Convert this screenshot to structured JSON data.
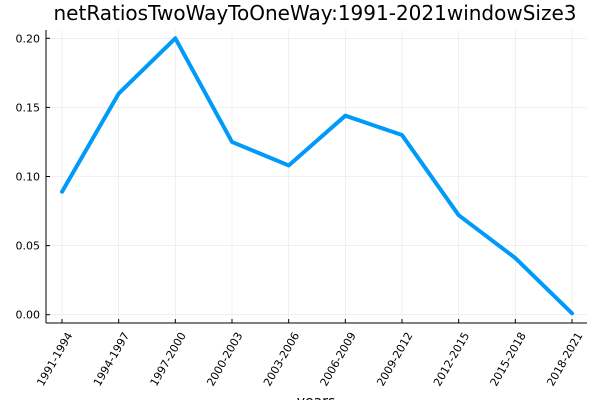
{
  "chart_data": {
    "type": "line",
    "title": "netRatiosTwoWayToOneWay:1991-2021windowSize3",
    "xlabel": "years",
    "ylabel": "",
    "categories": [
      "1991-1994",
      "1994-1997",
      "1997-2000",
      "2000-2003",
      "2003-2006",
      "2006-2009",
      "2009-2012",
      "2012-2015",
      "2015-2018",
      "2018-2021"
    ],
    "series": [
      {
        "values": [
          0.089,
          0.16,
          0.2,
          0.125,
          0.108,
          0.144,
          0.13,
          0.072,
          0.041,
          0.001
        ],
        "color": "#009af9"
      }
    ],
    "ylim": [
      -0.006,
      0.206
    ],
    "yticks": [
      0.0,
      0.05,
      0.1,
      0.15,
      0.2
    ],
    "ytick_labels": [
      "0.00",
      "0.05",
      "0.10",
      "0.15",
      "0.20"
    ],
    "grid": true,
    "legend": false
  }
}
